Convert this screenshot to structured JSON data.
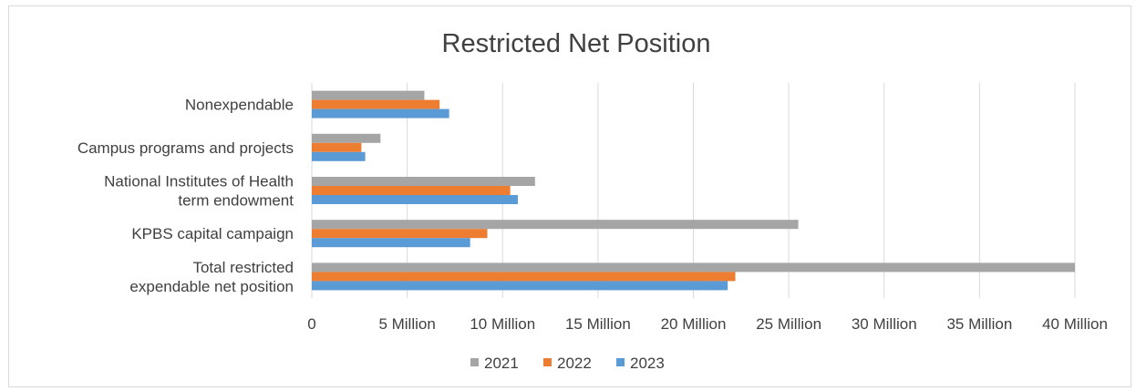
{
  "chart_data": {
    "type": "bar",
    "orientation": "horizontal",
    "title": "Restricted Net Position",
    "xlabel": "",
    "ylabel": "",
    "categories": [
      [
        "Nonexpendable"
      ],
      [
        "Campus programs and projects"
      ],
      [
        "National Institutes of Health",
        "term endowment"
      ],
      [
        "KPBS capital campaign"
      ],
      [
        "Total restricted",
        "expendable net position"
      ]
    ],
    "series": [
      {
        "name": "2021",
        "color": "#a5a5a5",
        "values": [
          5.9,
          3.6,
          11.7,
          25.5,
          40.0
        ]
      },
      {
        "name": "2022",
        "color": "#ed7d31",
        "values": [
          6.7,
          2.6,
          10.4,
          9.2,
          22.2
        ]
      },
      {
        "name": "2023",
        "color": "#5b9bd5",
        "values": [
          7.2,
          2.8,
          10.8,
          8.3,
          21.8
        ]
      }
    ],
    "xlim": [
      0,
      40
    ],
    "xticks": [
      0,
      5,
      10,
      15,
      20,
      25,
      30,
      35,
      40
    ],
    "xtick_labels": [
      "0",
      "5 Million",
      "10 Million",
      "15 Million",
      "20 Million",
      "25 Million",
      "30 Million",
      "35 Million",
      "40 Million"
    ],
    "grid": true,
    "legend_position": "bottom"
  }
}
